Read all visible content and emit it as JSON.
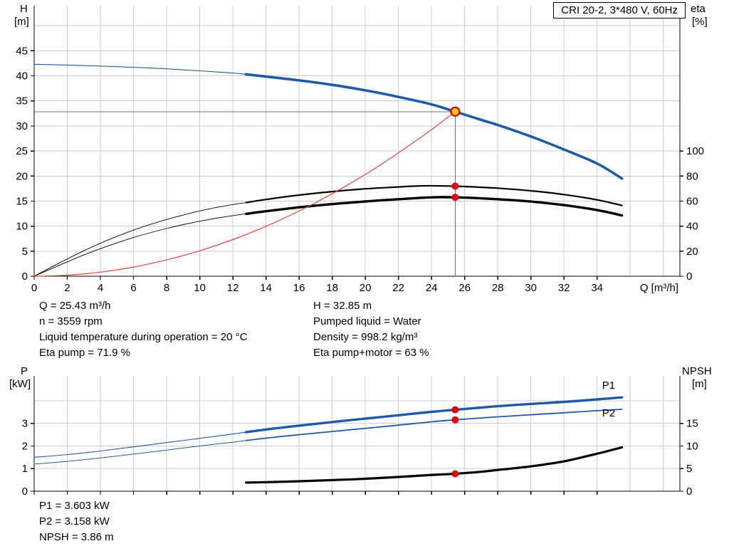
{
  "colors": {
    "grid": "#cccccc",
    "axis": "#000000",
    "ref_line": "#707070",
    "dot_red": "#e60012",
    "op_fill": "#ffd400",
    "curve_blue": "#1f5aa8",
    "system_red": "#e8453c",
    "curve_black": "#000000"
  },
  "info_top": {
    "col1": [
      "Q = 25.43 m³/h",
      "n = 3559 rpm",
      "Liquid temperature during operation = 20 °C",
      "Eta pump = 71.9 %"
    ],
    "col2": [
      "H = 32.85 m",
      "Pumped liquid = Water",
      "Density = 998.2 kg/m³",
      "Eta pump+motor = 63 %"
    ]
  },
  "info_bottom": [
    "P1 = 3.603 kW",
    "P2 = 3.158 kW",
    "NPSH = 3.86 m"
  ],
  "chart_data": [
    {
      "type": "line",
      "name": "head-efficiency-chart",
      "title": "CRI 20-2, 3*480 V, 60Hz",
      "x_axis": {
        "label": "Q [m³/h]",
        "min": 0,
        "max": 39,
        "ticks": [
          0,
          2,
          4,
          6,
          8,
          10,
          12,
          14,
          16,
          18,
          20,
          22,
          24,
          26,
          28,
          30,
          32,
          34
        ],
        "grid": [
          2,
          4,
          6,
          8,
          10,
          12,
          14,
          16,
          18,
          20,
          22,
          24,
          26,
          28,
          30,
          32,
          34,
          36,
          38
        ],
        "show_labels": true
      },
      "y_left": {
        "title_lines": [
          "H",
          "[m]"
        ],
        "min": 0,
        "max": 54,
        "ticks": [
          0,
          5,
          10,
          15,
          20,
          25,
          30,
          35,
          40,
          45
        ],
        "grid": [
          5,
          10,
          15,
          20,
          25,
          30,
          35,
          40,
          45,
          50
        ]
      },
      "y_right": {
        "title_lines": [
          "eta",
          "[%]"
        ],
        "min": 0,
        "max": 216,
        "ticks": [
          0,
          20,
          40,
          60,
          80,
          100
        ]
      },
      "series": [
        {
          "name": "head-curve",
          "axis": "left",
          "color": "#1f5aa8",
          "thin_width": 1.1,
          "thick_width": 3.6,
          "split": 12.8,
          "points": [
            [
              0,
              42.3
            ],
            [
              2,
              42.15
            ],
            [
              4,
              41.95
            ],
            [
              6,
              41.7
            ],
            [
              8,
              41.4
            ],
            [
              10,
              41.0
            ],
            [
              12,
              40.55
            ],
            [
              12.8,
              40.3
            ],
            [
              14,
              39.85
            ],
            [
              16,
              39.1
            ],
            [
              18,
              38.2
            ],
            [
              20,
              37.1
            ],
            [
              22,
              35.8
            ],
            [
              24,
              34.3
            ],
            [
              25.43,
              32.85
            ],
            [
              27,
              31.2
            ],
            [
              28,
              30.2
            ],
            [
              30,
              27.9
            ],
            [
              32,
              25.3
            ],
            [
              34,
              22.5
            ],
            [
              35.5,
              19.5
            ]
          ]
        },
        {
          "name": "eta-pump-curve",
          "axis": "right",
          "color": "#000000",
          "thin_width": 0.9,
          "thick_width": 2.2,
          "split": 12.8,
          "points": [
            [
              0,
              0
            ],
            [
              1,
              7
            ],
            [
              2,
              13.8
            ],
            [
              3,
              20.3
            ],
            [
              4,
              26.3
            ],
            [
              5,
              31.8
            ],
            [
              6,
              36.8
            ],
            [
              7,
              41.3
            ],
            [
              8,
              45.3
            ],
            [
              9,
              48.9
            ],
            [
              10,
              52.1
            ],
            [
              11,
              54.9
            ],
            [
              12,
              57.2
            ],
            [
              12.8,
              58.8
            ],
            [
              14,
              61.3
            ],
            [
              16,
              64.8
            ],
            [
              18,
              67.6
            ],
            [
              20,
              69.8
            ],
            [
              22,
              71.3
            ],
            [
              23.5,
              72.2
            ],
            [
              25.43,
              71.9
            ],
            [
              27,
              71.0
            ],
            [
              28,
              70.3
            ],
            [
              30,
              68.2
            ],
            [
              32,
              65.2
            ],
            [
              34,
              61.0
            ],
            [
              35.5,
              56.5
            ]
          ]
        },
        {
          "name": "eta-pump-motor-curve",
          "axis": "right",
          "color": "#000000",
          "thin_width": 0.9,
          "thick_width": 3.4,
          "split": 12.8,
          "points": [
            [
              0,
              0
            ],
            [
              1,
              5.8
            ],
            [
              2,
              11.5
            ],
            [
              3,
              17.0
            ],
            [
              4,
              22.0
            ],
            [
              5,
              26.6
            ],
            [
              6,
              30.9
            ],
            [
              7,
              34.7
            ],
            [
              8,
              38.1
            ],
            [
              9,
              41.2
            ],
            [
              10,
              43.9
            ],
            [
              11,
              46.3
            ],
            [
              12,
              48.4
            ],
            [
              12.8,
              49.8
            ],
            [
              14,
              51.9
            ],
            [
              16,
              55.0
            ],
            [
              18,
              57.6
            ],
            [
              20,
              59.7
            ],
            [
              22,
              61.5
            ],
            [
              23.5,
              62.7
            ],
            [
              24.5,
              63.15
            ],
            [
              25.43,
              63.0
            ],
            [
              27,
              62.2
            ],
            [
              28,
              61.5
            ],
            [
              30,
              59.6
            ],
            [
              32,
              56.8
            ],
            [
              34,
              52.8
            ],
            [
              35.5,
              48.5
            ]
          ]
        },
        {
          "name": "system-curve",
          "axis": "left",
          "color": "#e8453c",
          "thin_width": 1.2,
          "thick_width": 1.2,
          "split": 99,
          "points": [
            [
              0,
              0
            ],
            [
              2,
              0.2
            ],
            [
              4,
              0.81
            ],
            [
              6,
              1.83
            ],
            [
              8,
              3.25
            ],
            [
              10,
              5.08
            ],
            [
              12,
              7.32
            ],
            [
              14,
              9.96
            ],
            [
              16,
              13.0
            ],
            [
              18,
              16.46
            ],
            [
              20,
              20.32
            ],
            [
              21.5,
              23.5
            ],
            [
              23,
              26.9
            ],
            [
              24.3,
              30.0
            ],
            [
              25.43,
              32.85
            ]
          ]
        }
      ],
      "ref_lines": {
        "q": 25.43,
        "h": 32.85
      },
      "operating_point": {
        "q": 25.43,
        "h": 32.85
      },
      "dots": [
        {
          "q": 25.43,
          "v": 71.9,
          "axis": "right"
        },
        {
          "q": 25.43,
          "v": 63.0,
          "axis": "right"
        }
      ]
    },
    {
      "type": "line",
      "name": "power-npsh-chart",
      "x_axis": {
        "min": 0,
        "max": 39,
        "ticks": [
          0,
          2,
          4,
          6,
          8,
          10,
          12,
          14,
          16,
          18,
          20,
          22,
          24,
          26,
          28,
          30,
          32,
          34
        ],
        "grid": [
          2,
          4,
          6,
          8,
          10,
          12,
          14,
          16,
          18,
          20,
          22,
          24,
          26,
          28,
          30,
          32,
          34,
          36,
          38
        ],
        "show_labels": false
      },
      "y_left": {
        "title_lines": [
          "P",
          "[kW]"
        ],
        "min": 0,
        "max": 5.1,
        "ticks": [
          0,
          1,
          2,
          3
        ],
        "grid": [
          1,
          2,
          3,
          4
        ]
      },
      "y_right": {
        "title_lines": [
          "NPSH",
          "[m]"
        ],
        "min": 0,
        "max": 25.5,
        "ticks": [
          0,
          5,
          10,
          15
        ]
      },
      "series": [
        {
          "name": "p1-curve",
          "axis": "left",
          "color": "#1f5aa8",
          "thin_width": 1.1,
          "thick_width": 3.4,
          "split": 12.8,
          "points": [
            [
              0,
              1.5
            ],
            [
              2,
              1.62
            ],
            [
              4,
              1.78
            ],
            [
              6,
              1.96
            ],
            [
              8,
              2.15
            ],
            [
              10,
              2.34
            ],
            [
              12,
              2.53
            ],
            [
              12.8,
              2.61
            ],
            [
              14,
              2.73
            ],
            [
              16,
              2.9
            ],
            [
              18,
              3.06
            ],
            [
              20,
              3.21
            ],
            [
              22,
              3.36
            ],
            [
              24,
              3.51
            ],
            [
              25.43,
              3.603
            ],
            [
              27,
              3.7
            ],
            [
              28,
              3.76
            ],
            [
              30,
              3.86
            ],
            [
              32,
              3.95
            ],
            [
              34,
              4.06
            ],
            [
              35.5,
              4.15
            ]
          ]
        },
        {
          "name": "p2-curve",
          "axis": "left",
          "color": "#1f5aa8",
          "thin_width": 1.0,
          "thick_width": 1.8,
          "split": 12.8,
          "points": [
            [
              0,
              1.2
            ],
            [
              2,
              1.32
            ],
            [
              4,
              1.47
            ],
            [
              6,
              1.64
            ],
            [
              8,
              1.82
            ],
            [
              10,
              2.0
            ],
            [
              12,
              2.17
            ],
            [
              12.8,
              2.24
            ],
            [
              14,
              2.35
            ],
            [
              16,
              2.5
            ],
            [
              18,
              2.64
            ],
            [
              20,
              2.78
            ],
            [
              22,
              2.92
            ],
            [
              24,
              3.07
            ],
            [
              25.43,
              3.158
            ],
            [
              27,
              3.24
            ],
            [
              28,
              3.29
            ],
            [
              30,
              3.38
            ],
            [
              32,
              3.47
            ],
            [
              34,
              3.56
            ],
            [
              35.5,
              3.62
            ]
          ]
        },
        {
          "name": "npsh-curve",
          "axis": "right",
          "color": "#000000",
          "thin_width": 1.0,
          "thick_width": 3.2,
          "split": 12.8,
          "points": [
            [
              12.8,
              1.9
            ],
            [
              14,
              2.0
            ],
            [
              16,
              2.2
            ],
            [
              18,
              2.45
            ],
            [
              20,
              2.75
            ],
            [
              22,
              3.15
            ],
            [
              24,
              3.6
            ],
            [
              25.43,
              3.86
            ],
            [
              27,
              4.3
            ],
            [
              28,
              4.7
            ],
            [
              30,
              5.5
            ],
            [
              32,
              6.6
            ],
            [
              34,
              8.3
            ],
            [
              35.5,
              9.7
            ]
          ]
        }
      ],
      "dots": [
        {
          "q": 25.43,
          "v": 3.603,
          "axis": "left"
        },
        {
          "q": 25.43,
          "v": 3.158,
          "axis": "left"
        },
        {
          "q": 25.43,
          "v": 3.86,
          "axis": "right"
        }
      ],
      "annotations": [
        {
          "text": "P1",
          "q": 34.3,
          "v": 4.53,
          "axis": "left",
          "color": "#1f5aa8"
        },
        {
          "text": "P2",
          "q": 34.3,
          "v": 3.31,
          "axis": "left",
          "color": "#1f5aa8"
        }
      ]
    }
  ]
}
